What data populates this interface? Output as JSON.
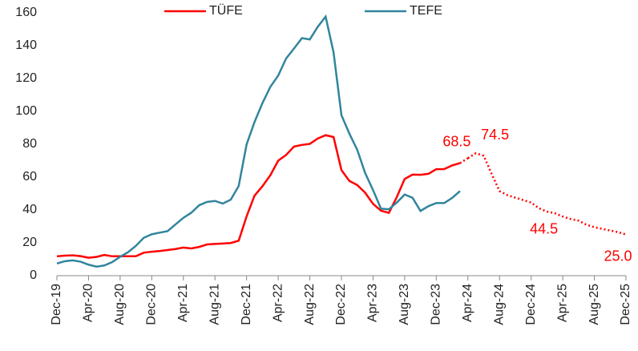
{
  "chart_data": {
    "type": "line",
    "categories": [
      "Dec-19",
      null,
      null,
      null,
      "Apr-20",
      null,
      null,
      null,
      "Aug-20",
      null,
      null,
      null,
      "Dec-20",
      null,
      null,
      null,
      "Apr-21",
      null,
      null,
      null,
      "Aug-21",
      null,
      null,
      null,
      "Dec-21",
      null,
      null,
      null,
      "Apr-22",
      null,
      null,
      null,
      "Aug-22",
      null,
      null,
      null,
      "Dec-22",
      null,
      null,
      null,
      "Apr-23",
      null,
      null,
      null,
      "Aug-23",
      null,
      null,
      null,
      "Dec-23",
      null,
      null,
      null,
      "Apr-24",
      null,
      null,
      null,
      "Aug-24",
      null,
      null,
      null,
      "Dec-24",
      null,
      null,
      null,
      "Apr-25",
      null,
      null,
      null,
      "Aug-25",
      null,
      null,
      null,
      "Dec-25"
    ],
    "series": [
      {
        "name": "TÜFE",
        "color": "#ff0000",
        "values": [
          11.8,
          12.2,
          12.4,
          11.9,
          10.9,
          11.4,
          12.6,
          11.8,
          11.8,
          11.8,
          11.9,
          14.0,
          14.6,
          15.0,
          15.6,
          16.2,
          17.1,
          16.6,
          17.5,
          19.0,
          19.3,
          19.6,
          19.9,
          21.3,
          36.1,
          48.7,
          54.4,
          61.1,
          70.0,
          73.5,
          78.6,
          79.6,
          80.2,
          83.5,
          85.5,
          84.4,
          64.3,
          57.7,
          55.2,
          50.5,
          43.7,
          39.6,
          38.2,
          47.8,
          58.9,
          61.5,
          61.4,
          62.0,
          64.8,
          64.9,
          67.1,
          68.5,
          null,
          null,
          null,
          null,
          null,
          null,
          null,
          null,
          null,
          null,
          null,
          null,
          null,
          null,
          null,
          null,
          null,
          null,
          null,
          null,
          null
        ],
        "value_labels": [
          null,
          null,
          null,
          null,
          null,
          null,
          null,
          null,
          null,
          null,
          null,
          null,
          null,
          null,
          null,
          null,
          null,
          null,
          null,
          null,
          null,
          null,
          null,
          null,
          null,
          null,
          null,
          null,
          null,
          null,
          null,
          null,
          null,
          null,
          null,
          null,
          null,
          null,
          null,
          null,
          null,
          null,
          null,
          null,
          null,
          null,
          null,
          null,
          null,
          null,
          null,
          "68.5",
          null,
          null,
          null,
          null,
          null,
          null,
          null,
          null,
          null,
          null,
          null,
          null,
          null,
          null,
          null,
          null,
          null,
          null,
          null,
          null,
          null
        ]
      },
      {
        "name": "TEFE",
        "color": "#31859c",
        "values": [
          7.4,
          8.8,
          9.3,
          8.5,
          6.7,
          5.5,
          6.2,
          8.3,
          11.5,
          14.3,
          18.2,
          23.1,
          25.2,
          26.2,
          27.1,
          31.2,
          35.2,
          38.3,
          42.9,
          44.9,
          45.5,
          43.9,
          46.3,
          54.6,
          79.9,
          93.5,
          105,
          114.9,
          121.8,
          132.2,
          138.3,
          144.6,
          143.8,
          151.5,
          157.7,
          136,
          97.7,
          86.5,
          76.6,
          62.5,
          52.1,
          40.8,
          40.4,
          44.5,
          49.4,
          47.4,
          39.4,
          42.3,
          44.2,
          44.2,
          47.3,
          51.5,
          null,
          null,
          null,
          null,
          null,
          null,
          null,
          null,
          null,
          null,
          null,
          null,
          null,
          null,
          null,
          null,
          null,
          null,
          null,
          null,
          null
        ]
      }
    ],
    "forecast": {
      "color": "#ff0000",
      "style": "dotted",
      "values": [
        null,
        null,
        null,
        null,
        null,
        null,
        null,
        null,
        null,
        null,
        null,
        null,
        null,
        null,
        null,
        null,
        null,
        null,
        null,
        null,
        null,
        null,
        null,
        null,
        null,
        null,
        null,
        null,
        null,
        null,
        null,
        null,
        null,
        null,
        null,
        null,
        null,
        null,
        null,
        null,
        null,
        null,
        null,
        null,
        null,
        null,
        null,
        null,
        null,
        null,
        null,
        null,
        71.5,
        74.5,
        73,
        62,
        51.5,
        49,
        47.5,
        46,
        44.5,
        41,
        39,
        38,
        36,
        34.5,
        33.5,
        31,
        29.5,
        28.5,
        27.5,
        26.5,
        25
      ],
      "value_labels": [
        null,
        null,
        null,
        null,
        null,
        null,
        null,
        null,
        null,
        null,
        null,
        null,
        null,
        null,
        null,
        null,
        null,
        null,
        null,
        null,
        null,
        null,
        null,
        null,
        null,
        null,
        null,
        null,
        null,
        null,
        null,
        null,
        null,
        null,
        null,
        null,
        null,
        null,
        null,
        null,
        null,
        null,
        null,
        null,
        null,
        null,
        null,
        null,
        null,
        null,
        null,
        null,
        null,
        "74.5",
        null,
        null,
        null,
        null,
        null,
        null,
        "44.5",
        null,
        null,
        null,
        null,
        null,
        null,
        null,
        null,
        null,
        null,
        null,
        "25.0"
      ]
    },
    "ylim": [
      0,
      160
    ],
    "yticks": [
      0,
      20,
      40,
      60,
      80,
      100,
      120,
      140,
      160
    ],
    "grid": false,
    "legend": "top"
  }
}
